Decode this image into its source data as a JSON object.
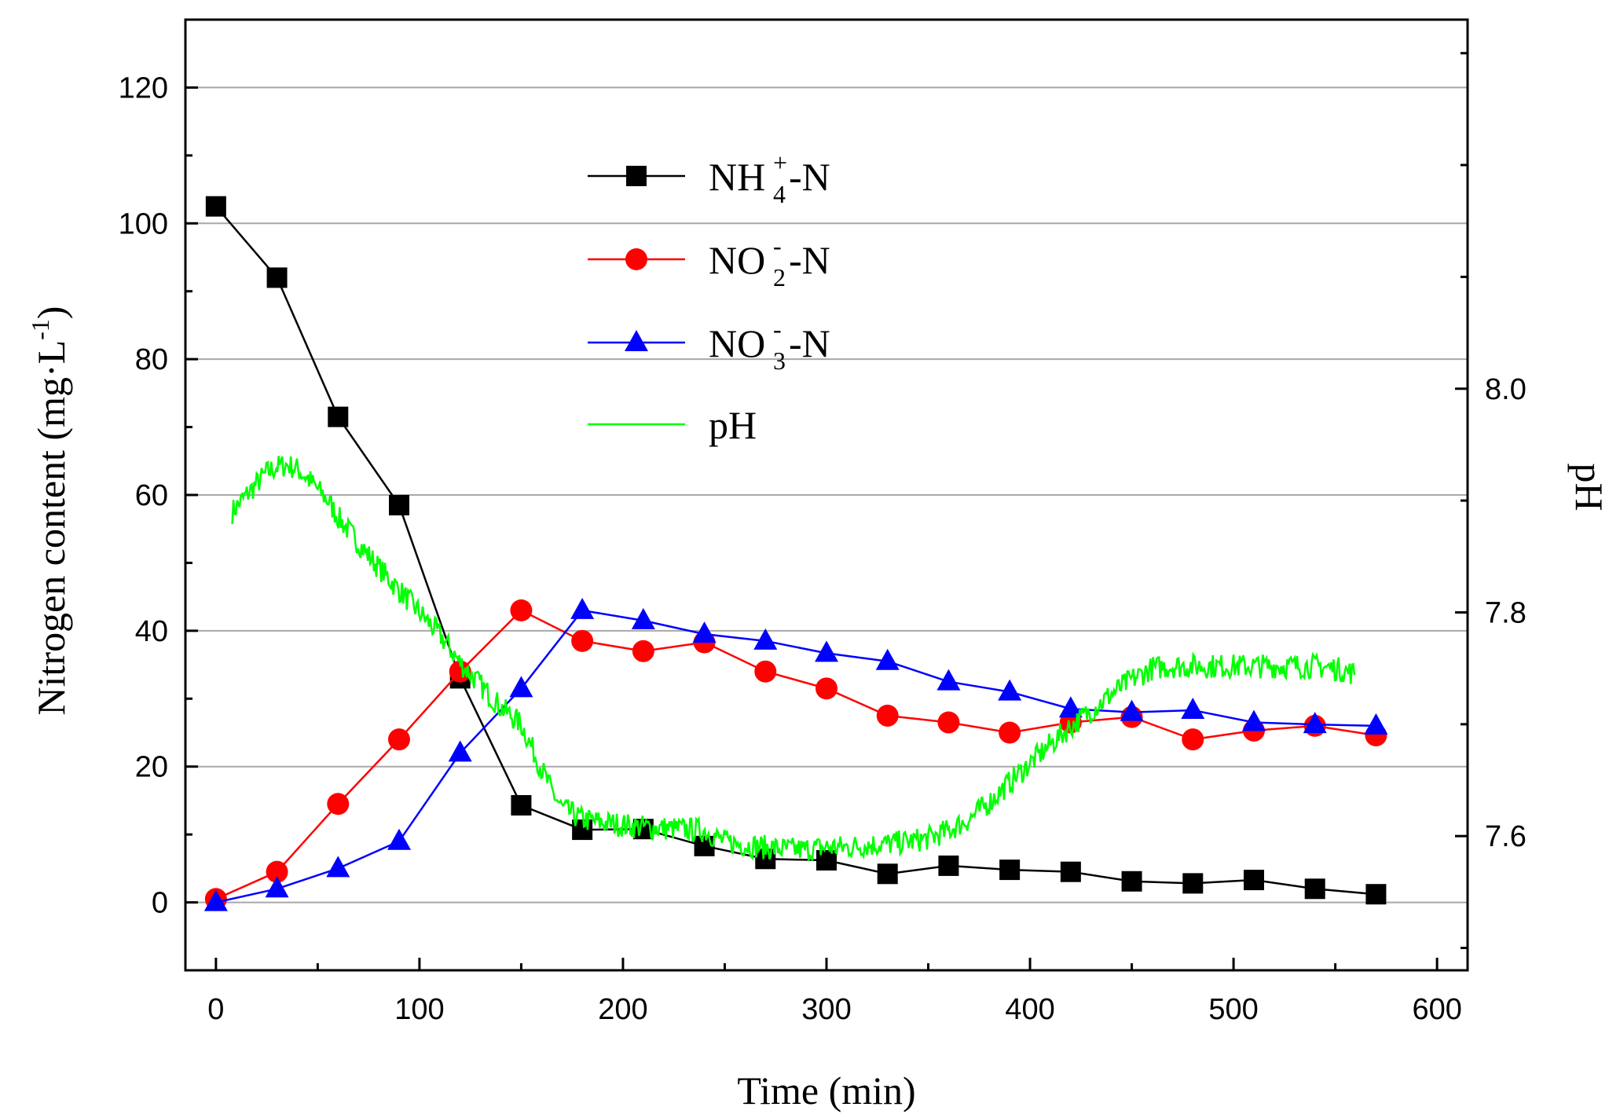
{
  "chart_data": {
    "type": "line",
    "title": "",
    "xlabel": "Time (min)",
    "ylabel": "Nitrogen content (mg·L",
    "ylabel_sup": "-1",
    "ylabel_close": ")",
    "y2label": "pH",
    "xlim": [
      -15,
      615
    ],
    "ylim": [
      -10,
      130
    ],
    "y2lim": [
      7.48,
      8.33
    ],
    "x_ticks": [
      0,
      100,
      200,
      300,
      400,
      500,
      600
    ],
    "y_ticks": [
      0,
      20,
      40,
      60,
      80,
      100,
      120
    ],
    "y2_ticks": [
      7.6,
      7.8,
      8.0
    ],
    "y2_tick_labels": [
      "7.6",
      "7.8",
      "8.0"
    ],
    "grid": "horizontal",
    "legend_position": "top-center",
    "series": [
      {
        "name": "NH4+-N",
        "legend": {
          "main": "NH",
          "sub": "4",
          "sup": "+",
          "tail": "-N"
        },
        "color": "#000000",
        "marker": "square",
        "axis": "left",
        "x": [
          0,
          30,
          60,
          90,
          120,
          150,
          180,
          210,
          240,
          270,
          300,
          330,
          360,
          390,
          420,
          450,
          480,
          510,
          540,
          570
        ],
        "values": [
          102.5,
          92,
          71.5,
          58.5,
          33,
          14.3,
          10.7,
          10.8,
          8.3,
          6.4,
          6.2,
          4.2,
          5.4,
          4.8,
          4.5,
          3.1,
          2.8,
          3.3,
          2.0,
          1.2
        ]
      },
      {
        "name": "NO2--N",
        "legend": {
          "main": "NO",
          "sub": "2",
          "sup": "-",
          "tail": "-N"
        },
        "color": "#ff0000",
        "marker": "circle",
        "axis": "left",
        "x": [
          0,
          30,
          60,
          90,
          120,
          150,
          180,
          210,
          240,
          270,
          300,
          330,
          360,
          390,
          420,
          450,
          480,
          510,
          540,
          570
        ],
        "values": [
          0.5,
          4.5,
          14.5,
          24,
          34,
          43,
          38.5,
          37,
          38.3,
          34,
          31.5,
          27.5,
          26.5,
          25,
          26.5,
          27.3,
          24,
          25.3,
          26,
          24.6
        ]
      },
      {
        "name": "NO3--N",
        "legend": {
          "main": "NO",
          "sub": "3",
          "sup": "-",
          "tail": "-N"
        },
        "color": "#0000ff",
        "marker": "triangle",
        "axis": "left",
        "x": [
          0,
          30,
          60,
          90,
          120,
          150,
          180,
          210,
          240,
          270,
          300,
          330,
          360,
          390,
          420,
          450,
          480,
          510,
          540,
          570
        ],
        "values": [
          0,
          2,
          5,
          9,
          22,
          31.5,
          43,
          41.5,
          39.5,
          38.5,
          36.7,
          35.5,
          32.5,
          31,
          28.5,
          28,
          28.3,
          26.5,
          26.2,
          26
        ]
      },
      {
        "name": "pH",
        "legend": {
          "main": "pH",
          "sub": "",
          "sup": "",
          "tail": ""
        },
        "color": "#00ff00",
        "marker": "none",
        "axis": "right",
        "x": [
          8,
          15,
          20,
          25,
          30,
          35,
          40,
          45,
          50,
          55,
          60,
          70,
          80,
          90,
          100,
          110,
          120,
          130,
          140,
          150,
          155,
          160,
          165,
          170,
          175,
          180,
          190,
          200,
          210,
          220,
          230,
          240,
          250,
          260,
          270,
          280,
          290,
          300,
          310,
          320,
          330,
          340,
          350,
          360,
          370,
          380,
          390,
          400,
          410,
          420,
          430,
          440,
          450,
          460,
          470,
          480,
          490,
          500,
          510,
          520,
          530,
          540,
          550,
          560
        ],
        "values": [
          7.89,
          7.905,
          7.915,
          7.925,
          7.93,
          7.932,
          7.928,
          7.92,
          7.91,
          7.9,
          7.885,
          7.862,
          7.84,
          7.82,
          7.8,
          7.78,
          7.755,
          7.735,
          7.715,
          7.7,
          7.68,
          7.66,
          7.64,
          7.625,
          7.62,
          7.615,
          7.612,
          7.61,
          7.608,
          7.607,
          7.606,
          7.605,
          7.595,
          7.592,
          7.59,
          7.588,
          7.588,
          7.59,
          7.59,
          7.592,
          7.593,
          7.595,
          7.598,
          7.605,
          7.615,
          7.63,
          7.648,
          7.665,
          7.682,
          7.698,
          7.712,
          7.727,
          7.74,
          7.75,
          7.752,
          7.752,
          7.752,
          7.752,
          7.752,
          7.752,
          7.752,
          7.752,
          7.75,
          7.745
        ]
      }
    ]
  }
}
